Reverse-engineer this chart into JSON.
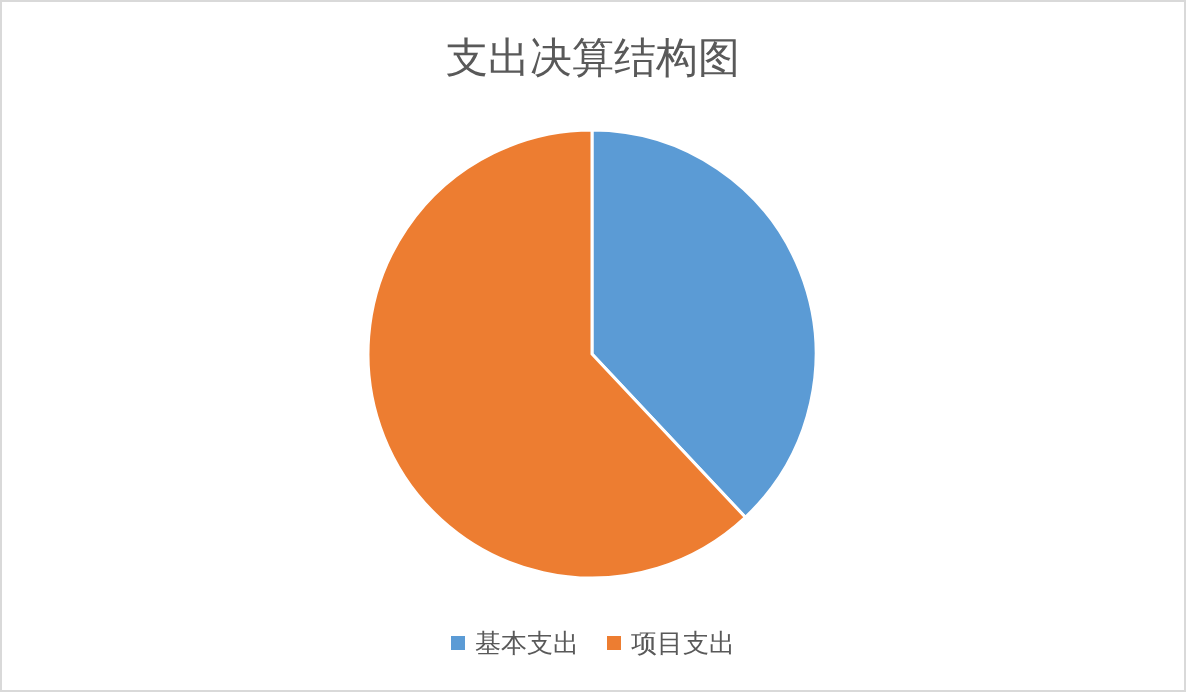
{
  "chart_data": {
    "type": "pie",
    "title": "支出决算结构图",
    "categories": [
      "基本支出",
      "项目支出"
    ],
    "values": [
      38,
      62
    ],
    "colors": [
      "#5b9bd5",
      "#ed7d31"
    ],
    "legend": "bottom"
  }
}
